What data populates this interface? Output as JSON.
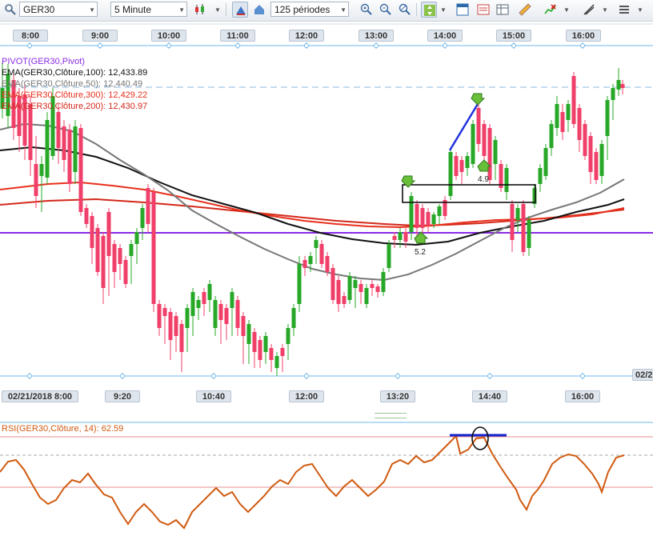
{
  "toolbar": {
    "symbol": "GER30",
    "timeframe": "5 Minute",
    "periods": "125 périodes",
    "icons": [
      "candlestick-icon",
      "crosshair-icon",
      "pan-icon",
      "zoom-in-icon",
      "zoom-out-icon",
      "zoom-reset-icon",
      "auto-fit-icon",
      "indicators-icon",
      "calculator-icon",
      "ruler-icon",
      "alert-icon",
      "drawing-tools-icon",
      "export-icon"
    ]
  },
  "top_time_axis": [
    "8:00",
    "9:00",
    "10:00",
    "11:00",
    "12:00",
    "13:00",
    "14:00",
    "15:00",
    "16:00"
  ],
  "bottom_time_axis": [
    "02/21/2018  8:00",
    "9:20",
    "10:40",
    "12:00",
    "13:20",
    "14:40",
    "16:00"
  ],
  "right_edge_date": "02/2",
  "legend": [
    {
      "text": "PIVOT(GER30,Pivot)",
      "color": "#8a2be2"
    },
    {
      "text": "EMA(GER30,Clôture,100): 12,433.89",
      "color": "#111111"
    },
    {
      "text": "EMA(GER30,Clôture,50): 12,440.49",
      "color": "#777777"
    },
    {
      "text": "EMA(GER30,Clôture,300): 12,429.22",
      "color": "#e8301c"
    },
    {
      "text": "EMA(GER30,Clôture,200): 12,430.97",
      "color": "#d4281a"
    }
  ],
  "annotations": [
    "5.2",
    "4.9"
  ],
  "rsi": {
    "label": "RSI(GER30,Clôture, 14): 62.59",
    "color": "#d05a10"
  },
  "colors": {
    "up": "#28a828",
    "down": "#f0406a",
    "pivot": "#8a2be2",
    "rsi": "#d05a10",
    "grid": "#6fb7e9"
  },
  "chart_data": {
    "type": "candlestick",
    "series": [
      {
        "name": "EMA(GER30,Clôture,100)",
        "last": 12433.89
      },
      {
        "name": "EMA(GER30,Clôture,50)",
        "last": 12440.49
      },
      {
        "name": "EMA(GER30,Clôture,300)",
        "last": 12429.22
      },
      {
        "name": "EMA(GER30,Clôture,200)",
        "last": 12430.97
      }
    ],
    "rsi_last": 62.59
  }
}
